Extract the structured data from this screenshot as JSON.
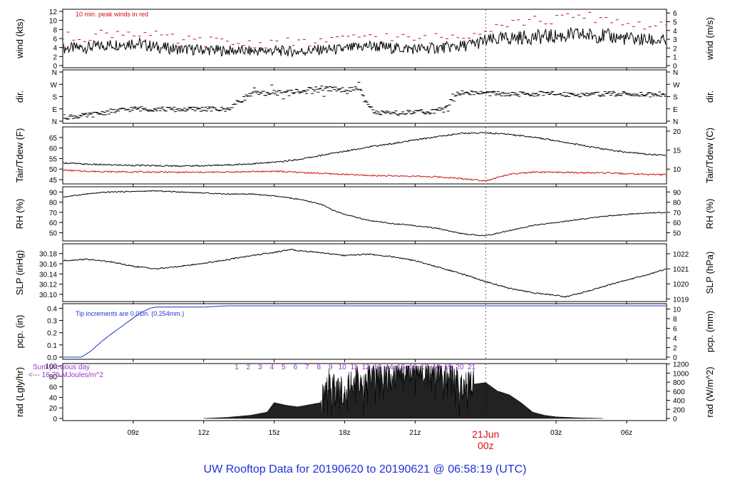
{
  "page": {
    "title": "UW Rooftop Data for 20190620  to  20190621 @ 06:58:19  (UTC)",
    "title_color": "#1f31d6"
  },
  "chart_data": {
    "type": "line",
    "x_axis": {
      "range_hours": [
        6,
        31.7
      ],
      "ticks": [
        {
          "hour": 9,
          "label": "09z"
        },
        {
          "hour": 12,
          "label": "12z"
        },
        {
          "hour": 15,
          "label": "15z"
        },
        {
          "hour": 18,
          "label": "18z"
        },
        {
          "hour": 21,
          "label": "21z"
        },
        {
          "hour": 27,
          "label": "03z"
        },
        {
          "hour": 30,
          "label": "06z"
        }
      ],
      "date_marker": {
        "hour": 24,
        "date_label": "21Jun",
        "time_label": "00z",
        "color": "#d01010"
      }
    },
    "panels": [
      {
        "id": "wind",
        "left_label": "wind (kts)",
        "right_label": "wind (m/s)",
        "left_range": [
          0,
          12
        ],
        "left_ticks": [
          0,
          2,
          4,
          6,
          8,
          10,
          12
        ],
        "right_ticks": [
          0,
          1,
          2,
          3,
          4,
          5,
          6
        ],
        "right_factor": 0.5144,
        "annotation": "10 min. peak winds in red",
        "annotation_color": "#d01010",
        "series": [
          {
            "name": "wind",
            "color": "#000000",
            "kind": "line",
            "x": [
              6,
              7,
              8,
              9,
              10,
              11,
              12,
              13,
              14,
              15,
              16,
              17,
              18,
              19,
              20,
              21,
              22,
              23,
              24,
              25,
              26,
              27,
              28,
              29,
              30,
              31,
              31.7
            ],
            "y": [
              3.8,
              4.0,
              4.6,
              5.1,
              4.1,
              3.6,
              3.5,
              3.3,
              3.2,
              3.3,
              3.1,
              3.5,
              3.6,
              4.4,
              3.9,
              3.7,
              3.9,
              4.3,
              5.4,
              6.1,
              6.3,
              6.5,
              6.8,
              6.6,
              6.0,
              5.6,
              5.4
            ]
          },
          {
            "name": "peak wind",
            "color": "#d01010",
            "kind": "dashes",
            "x": [
              6,
              7,
              8,
              9,
              10,
              11,
              12,
              13,
              14,
              15,
              16,
              17,
              18,
              19,
              20,
              21,
              22,
              23,
              24,
              25,
              26,
              27,
              28,
              29,
              30,
              31,
              31.7
            ],
            "y": [
              6.2,
              6.5,
              7.2,
              7.5,
              6.4,
              5.5,
              5.4,
              5.0,
              4.9,
              5.1,
              4.8,
              5.4,
              5.6,
              6.8,
              6.1,
              5.8,
              6.1,
              6.7,
              8.4,
              9.6,
              9.9,
              10.2,
              10.8,
              10.5,
              9.4,
              8.8,
              8.5
            ]
          }
        ]
      },
      {
        "id": "dir",
        "left_label": "dir.",
        "right_label": "dir.",
        "left_ticks_text": [
          "N",
          "E",
          "S",
          "W",
          "N"
        ],
        "right_ticks_text": [
          "N",
          "E",
          "S",
          "W",
          "N"
        ],
        "left_range": [
          0,
          360
        ],
        "series": [
          {
            "name": "direction",
            "color": "#000000",
            "kind": "dashes",
            "x": [
              6,
              7,
              8,
              9,
              10,
              11,
              12,
              13,
              13.3,
              14,
              15,
              16,
              17,
              18,
              18.6,
              19.3,
              20,
              21,
              22,
              23,
              24,
              25,
              26,
              27,
              28,
              29,
              30,
              31,
              31.7
            ],
            "y": [
              30,
              40,
              70,
              90,
              90,
              85,
              90,
              85,
              120,
              200,
              210,
              220,
              240,
              230,
              240,
              60,
              55,
              65,
              75,
              210,
              205,
              195,
              200,
              200,
              195,
              200,
              200,
              195,
              200
            ]
          }
        ]
      },
      {
        "id": "temp",
        "left_label": "Tair/Tdew (F)",
        "right_label": "Tair/Tdew (C)",
        "left_range": [
          44,
          69
        ],
        "left_ticks": [
          45,
          50,
          55,
          60,
          65
        ],
        "right_ticks": [
          10,
          15,
          20
        ],
        "right_convert": "f_to_c",
        "series": [
          {
            "name": "Tair",
            "color": "#000000",
            "kind": "line",
            "x": [
              6,
              7,
              8,
              9,
              10,
              11,
              12,
              13,
              14,
              15,
              16,
              17,
              18,
              19,
              20,
              21,
              22,
              23,
              24,
              25,
              26,
              27,
              28,
              29,
              30,
              31,
              31.7
            ],
            "y": [
              53,
              52.3,
              52,
              51.8,
              51.6,
              51.5,
              51.6,
              52,
              52.5,
              53.2,
              54.5,
              56.5,
              58.5,
              60.5,
              62,
              63.8,
              65.5,
              67,
              67.2,
              66.5,
              65.2,
              63.5,
              61.5,
              59.5,
              58,
              57,
              56.5
            ]
          },
          {
            "name": "Tdew",
            "color": "#d01010",
            "kind": "line",
            "x": [
              6,
              7,
              8,
              9,
              10,
              11,
              12,
              13,
              14,
              15,
              16,
              17,
              18,
              19,
              20,
              21,
              22,
              23,
              24,
              25,
              26,
              27,
              28,
              29,
              30,
              31,
              31.7
            ],
            "y": [
              49.5,
              49,
              48.8,
              48.7,
              48.6,
              48.5,
              48.5,
              48.6,
              48.8,
              49,
              48.5,
              48,
              47.5,
              47,
              46.8,
              46.6,
              46.3,
              45.5,
              44.5,
              47.5,
              48.5,
              48.5,
              48.3,
              48.2,
              47.8,
              47.5,
              47.4
            ]
          }
        ]
      },
      {
        "id": "rh",
        "left_label": "RH (%)",
        "right_label": "RH (%)",
        "left_range": [
          44,
          93
        ],
        "left_ticks": [
          50,
          60,
          70,
          80,
          90
        ],
        "right_ticks": [
          50,
          60,
          70,
          80,
          90
        ],
        "series": [
          {
            "name": "RH",
            "color": "#000000",
            "kind": "line",
            "x": [
              6,
              7,
              8,
              9,
              10,
              11,
              12,
              13,
              14,
              15,
              16,
              17,
              17.5,
              18,
              19,
              20,
              21,
              22,
              23,
              24,
              25,
              26,
              27,
              28,
              29,
              30,
              31,
              31.7
            ],
            "y": [
              85,
              88,
              90,
              90.5,
              91,
              90,
              89,
              88,
              88,
              86,
              83,
              78,
              72,
              68,
              62,
              59,
              57,
              54,
              49,
              47,
              52,
              57,
              60,
              63,
              66,
              68,
              69.5,
              70
            ]
          }
        ]
      },
      {
        "id": "slp",
        "left_label": "SLP (inHg)",
        "right_label": "SLP (hPa)",
        "left_range": [
          30.09,
          30.195
        ],
        "left_ticks": [
          30.1,
          30.12,
          30.14,
          30.16,
          30.18
        ],
        "right_ticks": [
          1019,
          1020,
          1021,
          1022
        ],
        "right_convert": "inhg_to_hpa",
        "series": [
          {
            "name": "SLP",
            "color": "#000000",
            "kind": "line",
            "x": [
              6,
              7,
              8,
              9,
              10,
              11,
              12,
              13,
              14,
              15,
              15.7,
              16,
              17,
              18,
              19,
              20,
              21,
              22,
              23,
              24,
              25,
              26,
              27,
              27.4,
              28,
              29,
              30,
              31,
              31.7
            ],
            "y": [
              30.166,
              30.169,
              30.164,
              30.155,
              30.15,
              30.155,
              30.161,
              30.168,
              30.176,
              30.182,
              30.188,
              30.186,
              30.182,
              30.176,
              30.179,
              30.174,
              30.166,
              30.153,
              30.14,
              30.125,
              30.112,
              30.103,
              30.098,
              30.095,
              30.102,
              30.115,
              30.128,
              30.14,
              30.15
            ]
          }
        ]
      },
      {
        "id": "pcp",
        "left_label": "pcp. (in)",
        "right_label": "pcp. (mm)",
        "left_range": [
          0,
          0.42
        ],
        "left_ticks": [
          0.0,
          0.1,
          0.2,
          0.3,
          0.4
        ],
        "right_ticks": [
          0,
          2,
          4,
          6,
          8,
          10
        ],
        "right_factor": 25.4,
        "annotation": "Tip increments are 0.01in. (0.254mm.)",
        "annotation_color": "#1f31d6",
        "series": [
          {
            "name": "precip",
            "color": "#1f31d6",
            "kind": "line",
            "x": [
              6,
              6.8,
              7.2,
              7.6,
              8,
              8.5,
              9,
              9.3,
              9.7,
              10,
              11,
              12,
              13,
              14,
              31.7
            ],
            "y": [
              0.0,
              0.0,
              0.05,
              0.12,
              0.18,
              0.25,
              0.32,
              0.36,
              0.4,
              0.41,
              0.41,
              0.41,
              0.42,
              0.42,
              0.42
            ]
          }
        ]
      },
      {
        "id": "rad",
        "left_label": "rad (Lgly/hr)",
        "right_label": "rad (W/m^2)",
        "left_range": [
          0,
          100
        ],
        "left_ticks": [
          0,
          20,
          40,
          60,
          80,
          100
        ],
        "right_ticks": [
          0,
          200,
          400,
          600,
          800,
          1000,
          1200
        ],
        "right_factor": 11.63,
        "annotation": "Sum previous day",
        "annotation2": "<--- 16.79 MJoules/m^2",
        "annotation_color": "#9b30d0",
        "hour_labels": [
          "1",
          "2",
          "3",
          "4",
          "5",
          "6",
          "7",
          "8",
          "9",
          "10",
          "11",
          "12",
          "13",
          "14",
          "15",
          "16",
          "17",
          "18",
          "19",
          "20",
          "21"
        ],
        "hour_labels_color": "#9b30d0",
        "series": [
          {
            "name": "radiation",
            "color": "#000000",
            "kind": "area",
            "x": [
              12,
              13,
              14,
              14.7,
              15,
              15.5,
              16,
              17,
              17.3,
              17.7,
              18,
              18.5,
              18.8,
              19,
              19.3,
              19.7,
              20,
              20.3,
              20.7,
              21,
              21.5,
              22,
              22.5,
              23,
              23.5,
              24,
              24.5,
              25,
              25.5,
              26,
              26.5,
              27,
              28,
              29
            ],
            "y": [
              0,
              2,
              6,
              12,
              30,
              25,
              22,
              30,
              70,
              50,
              55,
              80,
              60,
              90,
              88,
              72,
              80,
              95,
              92,
              98,
              95,
              90,
              82,
              60,
              65,
              68,
              52,
              45,
              30,
              12,
              6,
              3,
              1,
              0
            ]
          }
        ]
      }
    ]
  }
}
